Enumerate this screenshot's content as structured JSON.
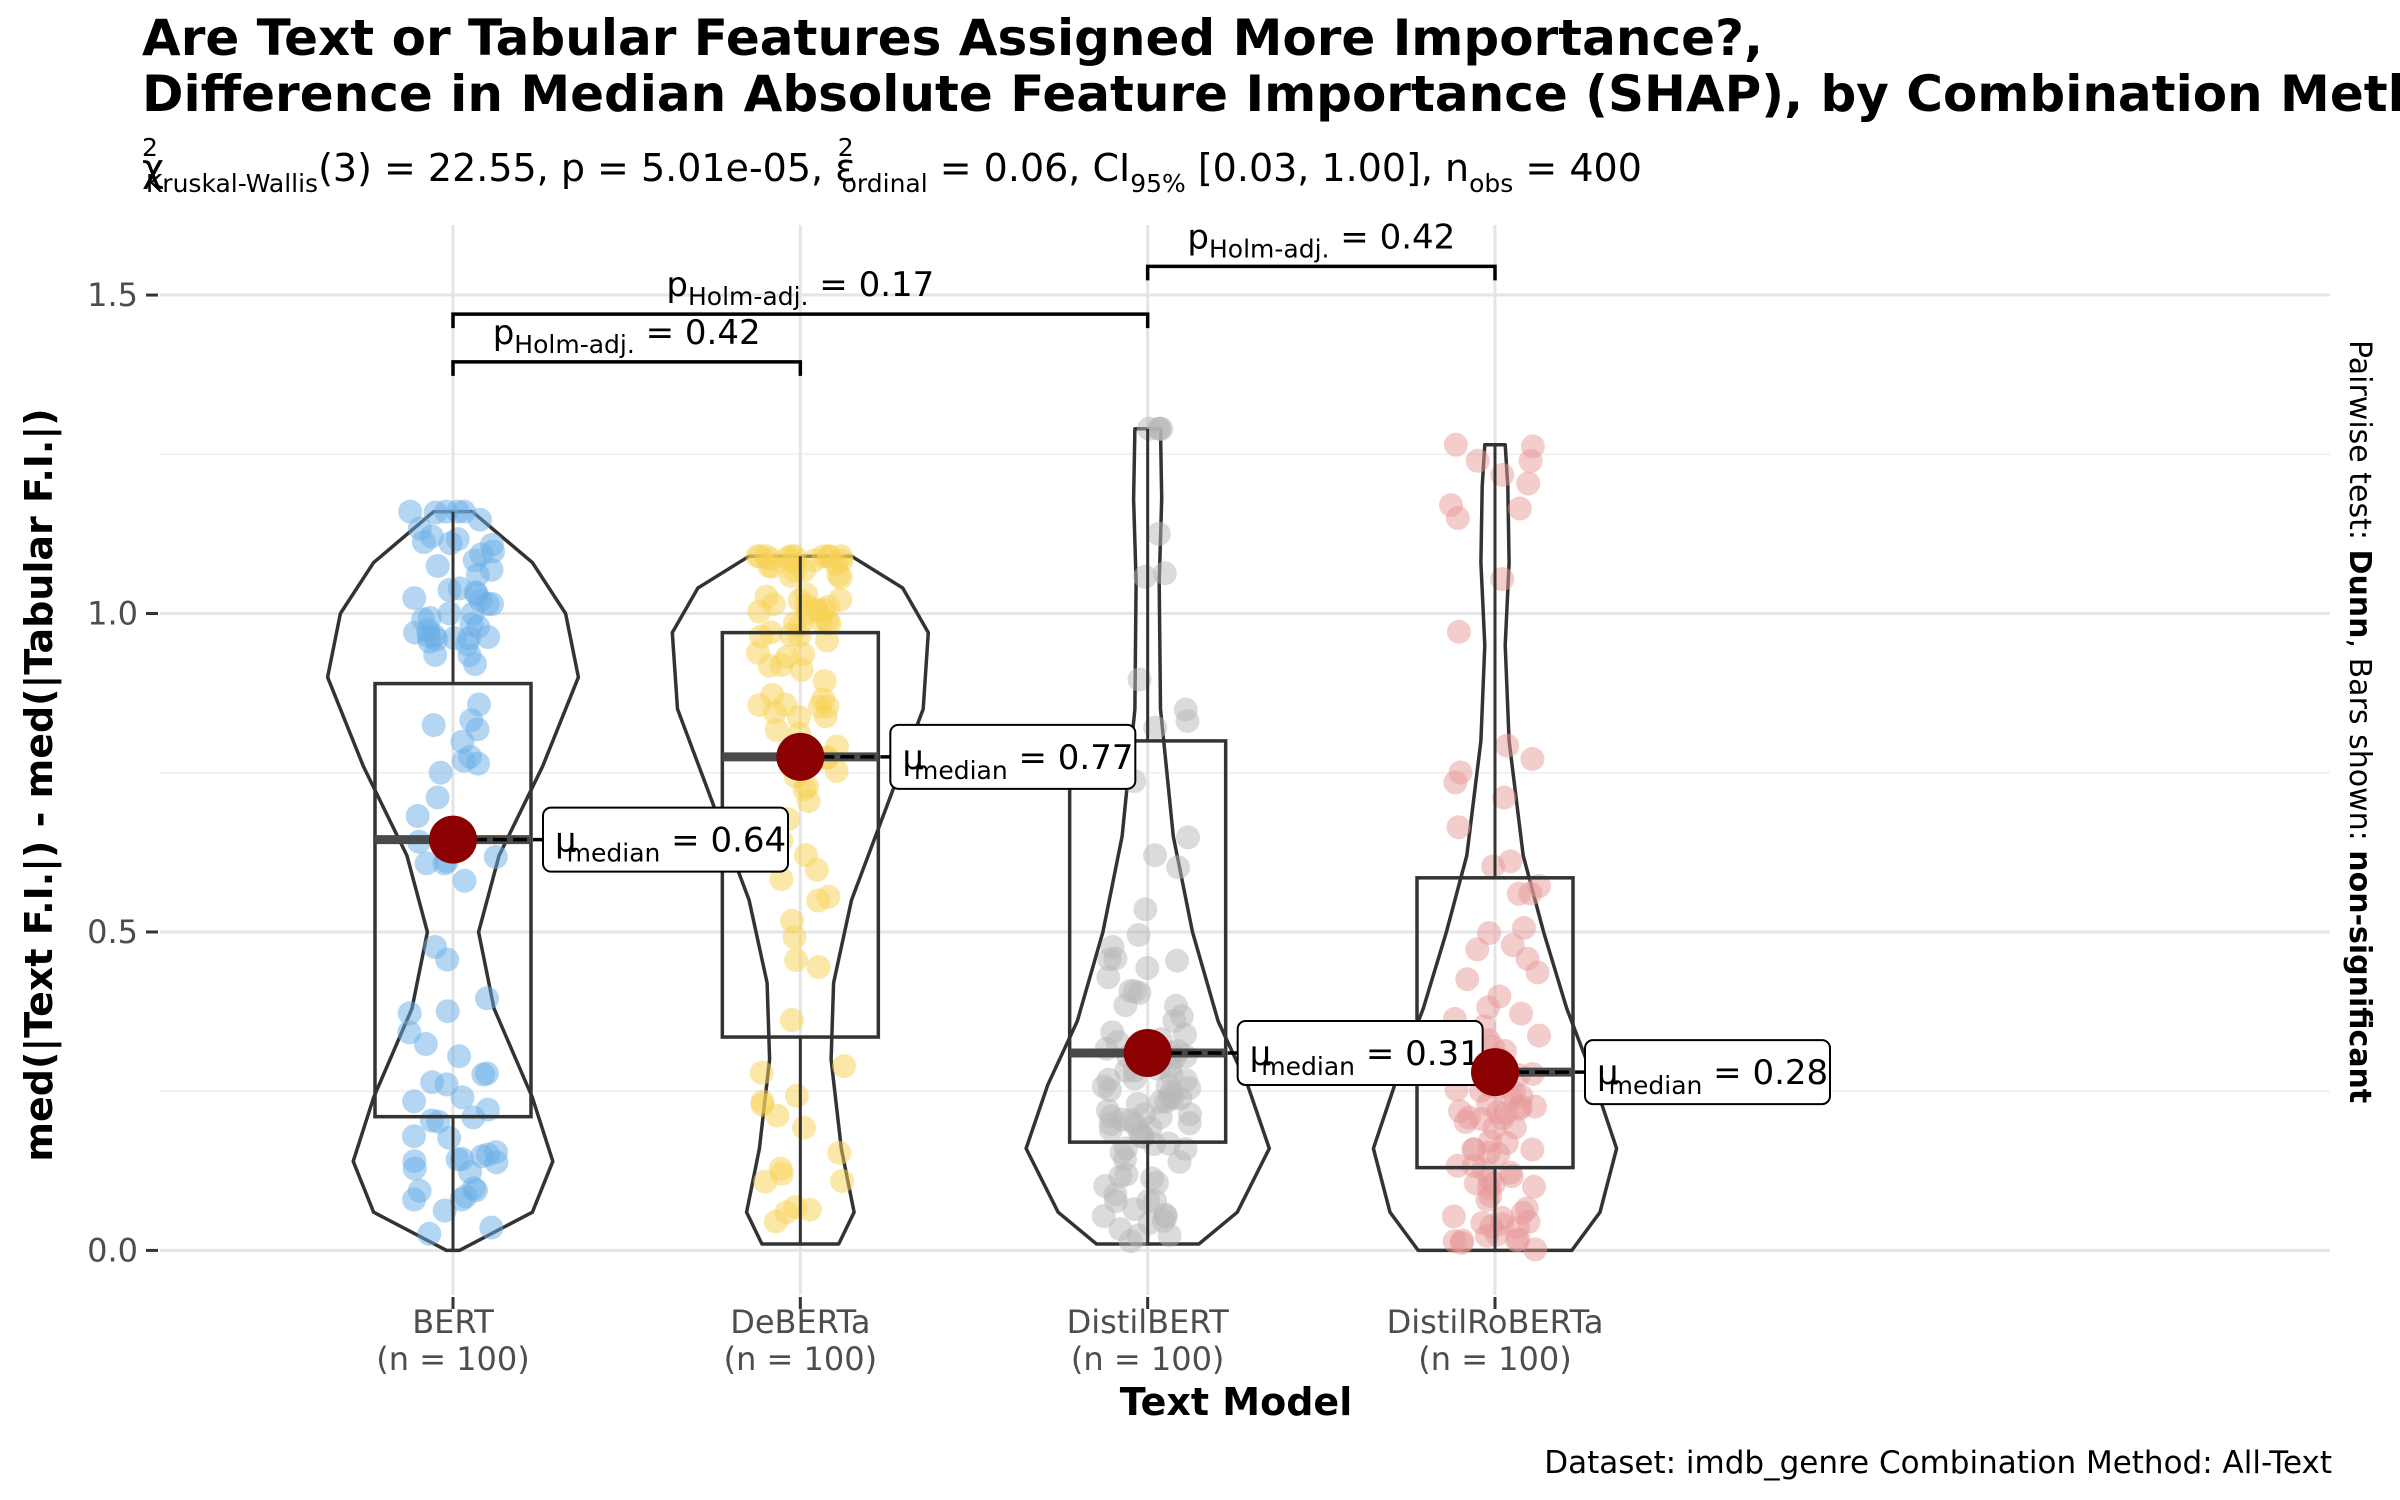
{
  "chart_data": {
    "type": "violin",
    "title_line1": "Are Text or Tabular Features Assigned More Importance?,",
    "title_line2": "Difference in Median Absolute Feature Importance (SHAP), by Combination Meth",
    "subtitle": {
      "chi_symbol": "χ",
      "sup": "2",
      "test_sub": "Kruskal-Wallis",
      "stat": "(3) = 22.55, p = 5.01e-05, ",
      "eps_symbol": "ε",
      "eps_sub": "ordinal",
      "eps_val": " = 0.06, CI",
      "ci_sub": "95%",
      "ci_val": " [0.03, 1.00], n",
      "n_sub": "obs",
      "n_val": " = 400"
    },
    "xlabel": "Text Model",
    "ylabel": "med(|Text F.I.|) - med(|Tabular F.I.|)",
    "ylim": [
      -0.07,
      1.61
    ],
    "yticks": [
      0.0,
      0.5,
      1.0,
      1.5
    ],
    "ytick_labels": [
      "0.0",
      "0.5",
      "1.0",
      "1.5"
    ],
    "grid": true,
    "caption": "Dataset:  imdb_genre Combination Method:  All-Text",
    "side_label": {
      "part1": "Pairwise test: ",
      "part2": "Dunn",
      "part3": ", Bars shown: ",
      "part4": "non-significant"
    },
    "median_label_prefix": "μ",
    "median_label_sub": "median",
    "median_color": "#8b0000",
    "categories": [
      {
        "name": "BERT",
        "n_label": "(n = 100)",
        "color": "#6aaee6",
        "q1": 0.21,
        "median": 0.645,
        "q3": 0.89,
        "min": 0.0,
        "max": 1.16,
        "median_label": " = 0.64"
      },
      {
        "name": "DeBERTa",
        "n_label": "(n = 100)",
        "color": "#f7d154",
        "q1": 0.335,
        "median": 0.775,
        "q3": 0.97,
        "min": 0.01,
        "max": 1.09,
        "median_label": " = 0.77"
      },
      {
        "name": "DistilBERT",
        "n_label": "(n = 100)",
        "color": "#b8b8b8",
        "q1": 0.17,
        "median": 0.31,
        "q3": 0.8,
        "min": 0.01,
        "max": 1.29,
        "median_label": " = 0.31"
      },
      {
        "name": "DistilRoBERTa",
        "n_label": "(n = 100)",
        "color": "#e8999a",
        "q1": 0.13,
        "median": 0.28,
        "q3": 0.585,
        "min": 0.0,
        "max": 1.265,
        "median_label": " = 0.28"
      }
    ],
    "comparisons": [
      {
        "from": "BERT",
        "to": "DeBERTa",
        "y": 1.395,
        "p_prefix": "p",
        "p_sub": "Holm-adj.",
        "p_val": " = 0.42"
      },
      {
        "from": "BERT",
        "to": "DistilBERT",
        "y": 1.47,
        "p_prefix": "p",
        "p_sub": "Holm-adj.",
        "p_val": " = 0.17"
      },
      {
        "from": "DistilBERT",
        "to": "DistilRoBERTa",
        "y": 1.545,
        "p_prefix": "p",
        "p_sub": "Holm-adj.",
        "p_val": " = 0.42"
      }
    ]
  }
}
